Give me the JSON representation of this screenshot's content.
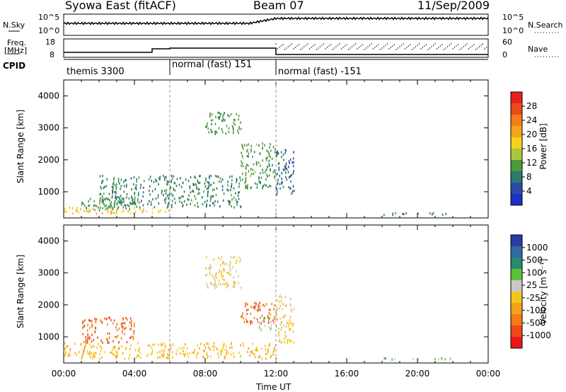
{
  "header": {
    "station": "Syowa East (fitACF)",
    "beam": "Beam 07",
    "date": "11/Sep/2009"
  },
  "top_panel": {
    "left_label": "N.Sky",
    "right_label": "N.Search",
    "y_ticks": [
      "10^5",
      "10^0"
    ],
    "right_ticks": [
      "10^5",
      "10^0"
    ]
  },
  "freq_panel": {
    "left_label_line1": "Freq.",
    "left_label_line2": "[MHz]",
    "left_ticks": [
      "18",
      "8"
    ],
    "right_label": "Nave",
    "right_ticks": [
      "60",
      "0"
    ]
  },
  "cpid": {
    "label": "CPID",
    "segments": [
      {
        "name": "themis 3300",
        "start_hour": 0,
        "end_hour": 6
      },
      {
        "name": "normal (fast) 151",
        "start_hour": 6,
        "end_hour": 12
      },
      {
        "name": "normal (fast) -151",
        "start_hour": 12,
        "end_hour": 24
      }
    ]
  },
  "power_panel": {
    "ylabel": "Slant Range [km]",
    "colorbar_label": "Power [dB]",
    "colorbar_ticks": [
      "28",
      "24",
      "20",
      "16",
      "12",
      "8",
      "4"
    ],
    "colorbar_colors": [
      "#e8201c",
      "#ee4a18",
      "#f57c16",
      "#f3a51c",
      "#f5d21e",
      "#a8c83c",
      "#4e9a3a",
      "#2e7a6a",
      "#2a4aa6",
      "#1e30c8"
    ]
  },
  "velocity_panel": {
    "ylabel": "Slant Range [km]",
    "colorbar_label": "Velocity [m s⁻¹]",
    "colorbar_ticks": [
      "1000",
      "500",
      "100",
      "25",
      "-25",
      "-100",
      "-500",
      "-1000"
    ],
    "colorbar_colors": [
      "#2a3aa8",
      "#2f6aa0",
      "#2a8a6c",
      "#5cbf3a",
      "#c8c8c8",
      "#f4c41c",
      "#f4a21c",
      "#f47a1c",
      "#f04818",
      "#e81818"
    ]
  },
  "axes": {
    "xlabel": "Time UT",
    "x_ticks": [
      "00:00",
      "04:00",
      "08:00",
      "12:00",
      "16:00",
      "20:00",
      "00:00"
    ],
    "y_ticks": [
      "4000",
      "3000",
      "2000",
      "1000"
    ],
    "y_range_km": [
      180,
      4500
    ],
    "x_range_hours": [
      0,
      24
    ]
  },
  "chart_data": [
    {
      "type": "heatmap",
      "title": "Power [dB]",
      "xlabel": "Time UT",
      "ylabel": "Slant Range [km]",
      "xlim": [
        0,
        24
      ],
      "ylim": [
        180,
        4500
      ],
      "zlim": [
        0,
        30
      ],
      "regions": [
        {
          "t": [
            0,
            6
          ],
          "r": [
            300,
            500
          ],
          "value": 18
        },
        {
          "t": [
            1,
            4
          ],
          "r": [
            400,
            800
          ],
          "value": 10
        },
        {
          "t": [
            2,
            10
          ],
          "r": [
            500,
            1500
          ],
          "value": 8
        },
        {
          "t": [
            8,
            10
          ],
          "r": [
            2800,
            3500
          ],
          "value": 10
        },
        {
          "t": [
            10,
            12
          ],
          "r": [
            1100,
            2500
          ],
          "value": 10
        },
        {
          "t": [
            12,
            13
          ],
          "r": [
            800,
            2300
          ],
          "value": 6
        },
        {
          "t": [
            18,
            22
          ],
          "r": [
            250,
            320
          ],
          "value": 8
        }
      ]
    },
    {
      "type": "heatmap",
      "title": "Velocity [m s⁻¹]",
      "xlabel": "Time UT",
      "ylabel": "Slant Range [km]",
      "xlim": [
        0,
        24
      ],
      "ylim": [
        180,
        4500
      ],
      "zlim": [
        -1000,
        1000
      ],
      "regions": [
        {
          "t": [
            0,
            12
          ],
          "r": [
            300,
            800
          ],
          "value": -150
        },
        {
          "t": [
            1,
            4
          ],
          "r": [
            800,
            1600
          ],
          "value": -600
        },
        {
          "t": [
            8,
            10
          ],
          "r": [
            2500,
            3500
          ],
          "value": 0
        },
        {
          "t": [
            10,
            12
          ],
          "r": [
            1400,
            2100
          ],
          "value": -600
        },
        {
          "t": [
            11,
            12
          ],
          "r": [
            1200,
            1600
          ],
          "value": 200
        },
        {
          "t": [
            12,
            13
          ],
          "r": [
            800,
            2300
          ],
          "value": -80
        },
        {
          "t": [
            18,
            22
          ],
          "r": [
            250,
            320
          ],
          "value": 300
        }
      ]
    }
  ]
}
